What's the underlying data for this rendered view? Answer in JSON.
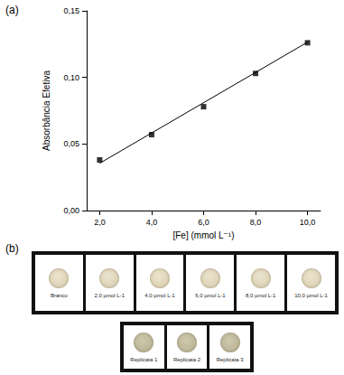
{
  "chart_data": {
    "type": "scatter",
    "x_label": "[Fe] (mmol L⁻¹)",
    "y_label": "Absorbância Efetiva",
    "series": [
      {
        "type": "scatter",
        "color": "#000000",
        "marker": "square",
        "x": [
          2.0,
          4.0,
          6.0,
          8.0,
          10.0
        ],
        "values": [
          0.038,
          0.057,
          0.078,
          0.103,
          0.126
        ]
      },
      {
        "type": "line",
        "color": "#000000",
        "line_style": "solid",
        "x": [
          2.0,
          10.0
        ],
        "values": [
          0.0355,
          0.1265
        ]
      }
    ],
    "xlim": [
      1.5,
      10.5
    ],
    "xticks": [
      {
        "value": 2,
        "label": "2,0"
      },
      {
        "value": 4,
        "label": "4,0"
      },
      {
        "value": 6,
        "label": "6,0"
      },
      {
        "value": 8,
        "label": "8,0"
      },
      {
        "value": 10,
        "label": "10,0"
      }
    ],
    "ylim": [
      0,
      0.15
    ],
    "yticks": [
      {
        "value": 0,
        "label": "0,00"
      },
      {
        "value": 0.05,
        "label": "0,05"
      },
      {
        "value": 0.1,
        "label": "0,10"
      },
      {
        "value": 0.15,
        "label": "0,15"
      }
    ],
    "grid": false
  },
  "panels": {
    "a": "(a)",
    "b": "(b)"
  },
  "spots": {
    "row1": [
      "Branco",
      "2,0 µmol L-1",
      "4,0 µmol L-1",
      "6,0 µmol L-1",
      "8,0 µmol L-1",
      "10,0 µmol L-1"
    ],
    "row2": [
      "Replicata 1",
      "Replicata 2",
      "Replicata 3"
    ]
  }
}
